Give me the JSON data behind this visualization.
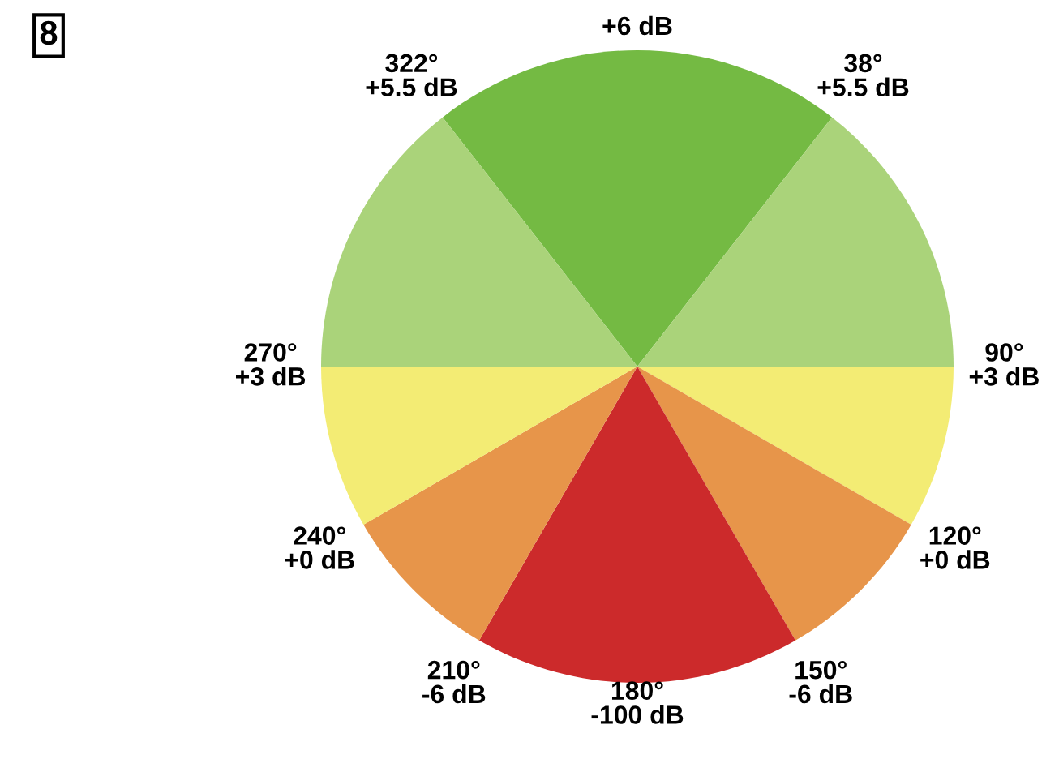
{
  "chart_data": {
    "type": "pie",
    "categories": [
      null,
      null,
      null,
      null,
      null,
      null,
      null,
      null
    ],
    "values": [
      21.11,
      14.45,
      8.33,
      8.33,
      16.67,
      8.33,
      8.33,
      14.45
    ],
    "colors": [
      "#74ba43",
      "#aad37a",
      "#f3ec74",
      "#e7954a",
      "#cc2a2b",
      "#e7954a",
      "#f3ec74",
      "#aad37a"
    ],
    "annotations": [
      "8",
      "+6 dB",
      "38°\n+5.5 dB",
      "90°\n+3 dB",
      "120°\n+0 dB",
      "150°\n-6 dB",
      "180°\n-100 dB",
      "210°\n-6 dB",
      "240°\n+0 dB",
      "270°\n+3 dB",
      "322°\n+5.5 dB"
    ]
  }
}
